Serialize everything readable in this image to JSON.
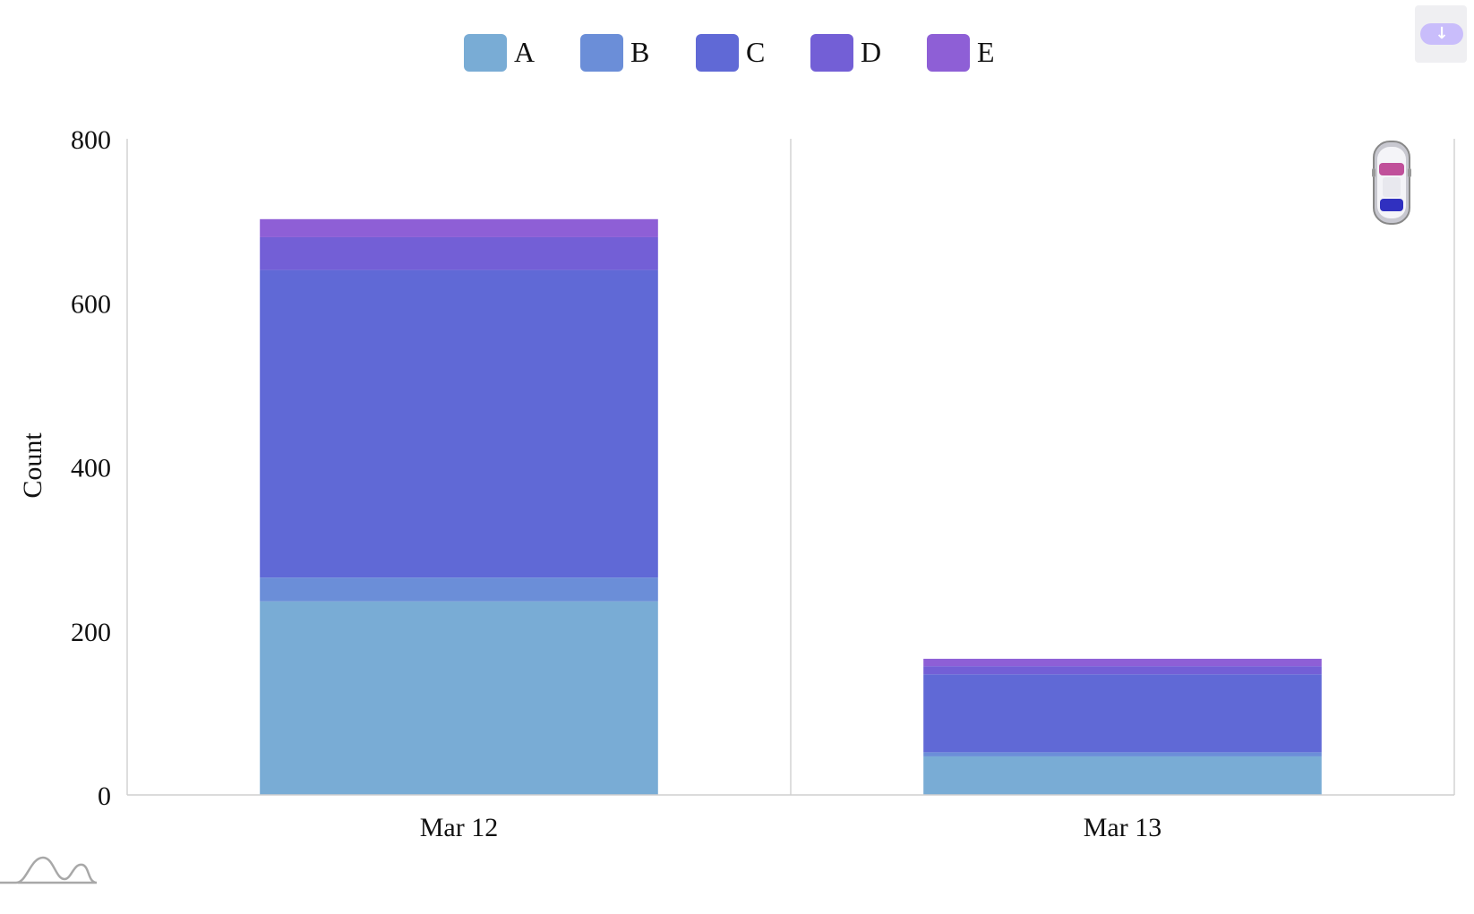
{
  "chart_data": {
    "type": "bar",
    "stacked": true,
    "categories": [
      "Mar 12",
      "Mar 13"
    ],
    "series": [
      {
        "name": "A",
        "color": "#79acd5",
        "values": [
          236,
          47
        ]
      },
      {
        "name": "B",
        "color": "#6b8ed8",
        "values": [
          29,
          5
        ]
      },
      {
        "name": "C",
        "color": "#6069d6",
        "values": [
          375,
          95
        ]
      },
      {
        "name": "D",
        "color": "#735fd6",
        "values": [
          40,
          10
        ]
      },
      {
        "name": "E",
        "color": "#8e5fd6",
        "values": [
          22,
          9
        ]
      }
    ],
    "title": "",
    "xlabel": "",
    "ylabel": "Count",
    "ylim": [
      0,
      800
    ],
    "yticks": [
      "0",
      "200",
      "400",
      "600",
      "800"
    ],
    "legend_position": "top-center",
    "grid": {
      "vertical_category_dividers": true,
      "horizontal": false
    }
  },
  "toolbar": {
    "download_icon": "download-arrow-icon",
    "download_glyph": "↓"
  },
  "decorations": {
    "car_icon": "car-icon",
    "logo_icon": "wave-logo-icon"
  }
}
